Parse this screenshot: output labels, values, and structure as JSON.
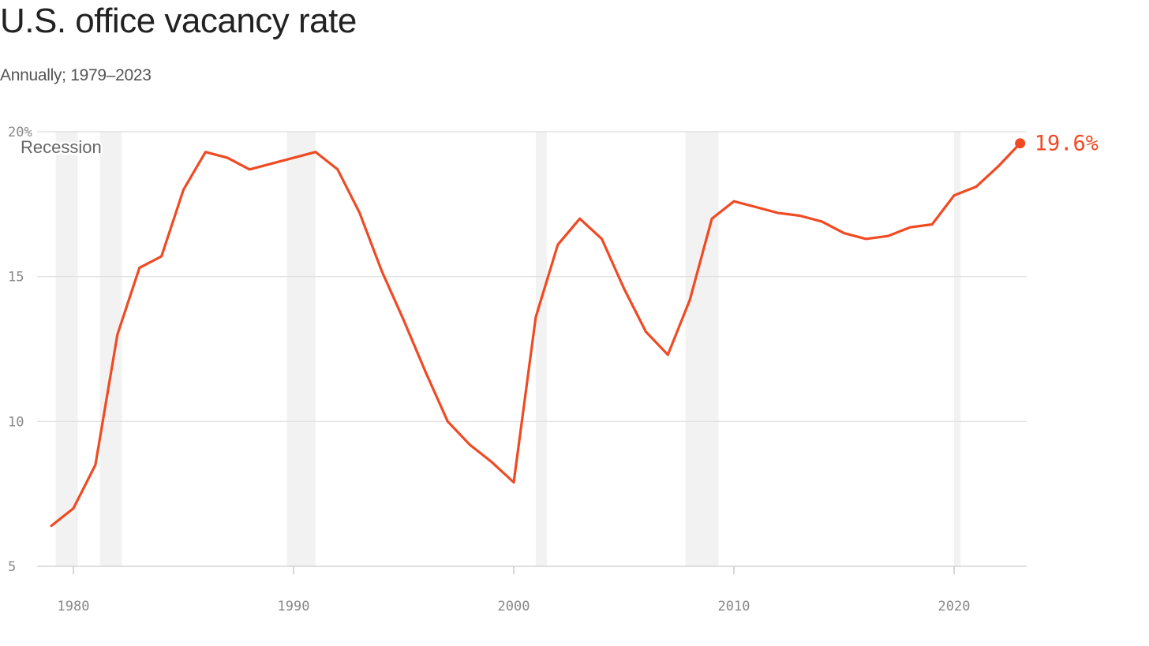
{
  "chart_data": {
    "type": "line",
    "title": "U.S. office vacancy rate",
    "subtitle": "Annually; 1979–2023",
    "xlabel": "",
    "ylabel": "",
    "xlim": [
      1979,
      2023
    ],
    "ylim": [
      5,
      20
    ],
    "x_ticks": [
      1980,
      1990,
      2000,
      2010,
      2020
    ],
    "x_tick_labels": [
      "1980",
      "1990",
      "2000",
      "2010",
      "2020"
    ],
    "y_ticks": [
      5,
      10,
      15,
      20
    ],
    "y_tick_labels": [
      "5",
      "10",
      "15",
      "20%"
    ],
    "grid": true,
    "series_color": "#f04a23",
    "recession_color": "#f2f2f2",
    "recession_label": "Recession",
    "recessions": [
      [
        1979.2,
        1980.2
      ],
      [
        1981.2,
        1982.2
      ],
      [
        1989.7,
        1991.0
      ],
      [
        2001.0,
        2001.5
      ],
      [
        2007.8,
        2009.3
      ],
      [
        2020.0,
        2020.3
      ]
    ],
    "series": [
      {
        "x": [
          1979,
          1980,
          1981,
          1982,
          1983,
          1984,
          1985,
          1986,
          1987,
          1988,
          1989,
          1990,
          1991,
          1992,
          1993,
          1994,
          1995,
          1996,
          1997,
          1998,
          1999,
          2000,
          2001,
          2002,
          2003,
          2004,
          2005,
          2006,
          2007,
          2008,
          2009,
          2010,
          2011,
          2012,
          2013,
          2014,
          2015,
          2016,
          2017,
          2018,
          2019,
          2020,
          2021,
          2022,
          2023
        ],
        "values": [
          6.4,
          7.0,
          8.5,
          13.0,
          15.3,
          15.7,
          18.0,
          19.3,
          19.1,
          18.7,
          18.9,
          19.1,
          19.3,
          18.7,
          17.2,
          15.2,
          13.5,
          11.7,
          10.0,
          9.2,
          8.6,
          7.9,
          13.6,
          16.1,
          17.0,
          16.3,
          14.6,
          13.1,
          12.3,
          14.2,
          17.0,
          17.6,
          17.4,
          17.2,
          17.1,
          16.9,
          16.5,
          16.3,
          16.4,
          16.7,
          16.8,
          17.8,
          18.1,
          18.8,
          19.6
        ]
      }
    ],
    "end_label": "19.6%"
  }
}
